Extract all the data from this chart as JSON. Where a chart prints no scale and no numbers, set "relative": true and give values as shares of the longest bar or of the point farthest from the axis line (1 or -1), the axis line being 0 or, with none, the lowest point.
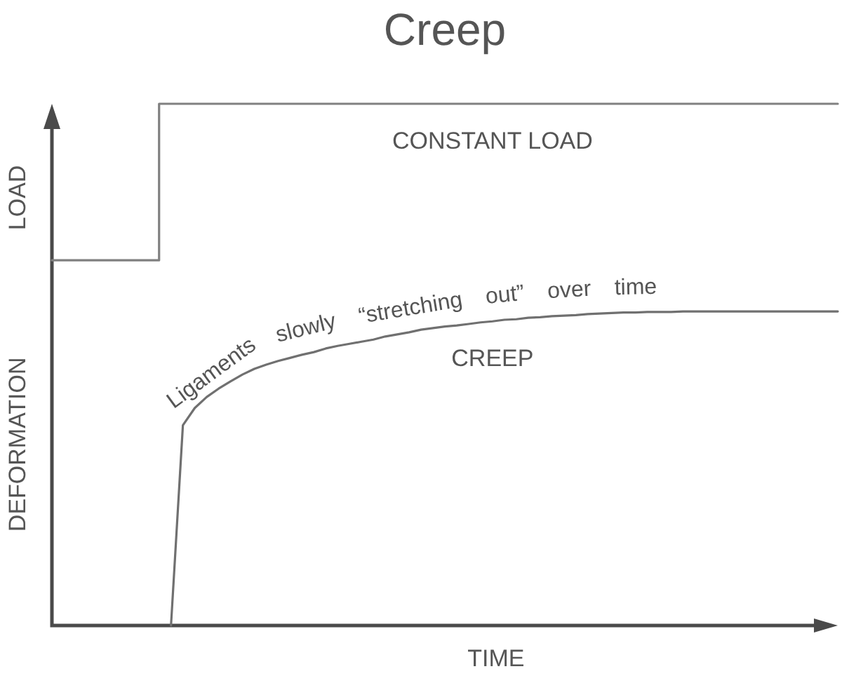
{
  "chart_data": {
    "type": "line",
    "title": "Creep",
    "xlabel": "TIME",
    "ylabel": "DEFORMATION",
    "annotations": [
      "LOAD",
      "Ligaments slowly “stretching out” over time"
    ],
    "relative": true,
    "legend": false,
    "grid": false,
    "marker": "none",
    "tick_labels": false,
    "categories": [
      null,
      null,
      null,
      null,
      null,
      null,
      null,
      null,
      null,
      null,
      null,
      null,
      null,
      null,
      null,
      null,
      null,
      null,
      null,
      null,
      null,
      null,
      null,
      null,
      null,
      null,
      null,
      null,
      null,
      null,
      null,
      null,
      null,
      null,
      null,
      null,
      null,
      null,
      null,
      null,
      null,
      null,
      null,
      null,
      null,
      null,
      null,
      null,
      null,
      null,
      null,
      null,
      null,
      null,
      null,
      null,
      null,
      null,
      null,
      null,
      null,
      null,
      null,
      null,
      null,
      null,
      null
    ],
    "series": [
      {
        "name": "CONSTANT LOAD",
        "type": "step",
        "color": "#808080",
        "values": [
          0.7,
          0.7,
          0.7,
          0.7,
          0.7,
          0.7,
          0.7,
          0.7,
          0.7,
          0.7,
          1,
          1,
          1,
          1,
          1,
          1,
          1,
          1,
          1,
          1,
          1,
          1,
          1,
          1,
          1,
          1,
          1,
          1,
          1,
          1,
          1,
          1,
          1,
          1,
          1,
          1,
          1,
          1,
          1,
          1,
          1,
          1,
          1,
          1,
          1,
          1,
          1,
          1,
          1,
          1,
          1,
          1,
          1,
          1,
          1,
          1,
          1,
          1,
          1,
          1,
          1,
          1,
          1,
          1,
          1,
          1,
          1
        ]
      },
      {
        "name": "CREEP",
        "type": "line",
        "color": "#707070",
        "values": [
          null,
          null,
          null,
          null,
          null,
          null,
          null,
          null,
          null,
          null,
          0,
          0.384,
          0.417,
          0.438,
          0.454,
          0.468,
          0.481,
          0.492,
          0.5,
          0.507,
          0.513,
          0.519,
          0.524,
          0.531,
          0.536,
          0.54,
          0.544,
          0.548,
          0.554,
          0.558,
          0.562,
          0.567,
          0.57,
          0.573,
          0.575,
          0.578,
          0.581,
          0.583,
          0.586,
          0.587,
          0.59,
          0.591,
          0.593,
          0.594,
          0.595,
          0.597,
          0.598,
          0.599,
          0.6,
          0.6,
          0.601,
          0.601,
          0.601,
          0.602,
          0.602,
          0.602,
          0.602,
          0.602,
          0.602,
          0.602,
          0.602,
          0.602,
          0.602,
          0.602,
          0.602,
          0.602,
          0.602
        ]
      }
    ]
  }
}
